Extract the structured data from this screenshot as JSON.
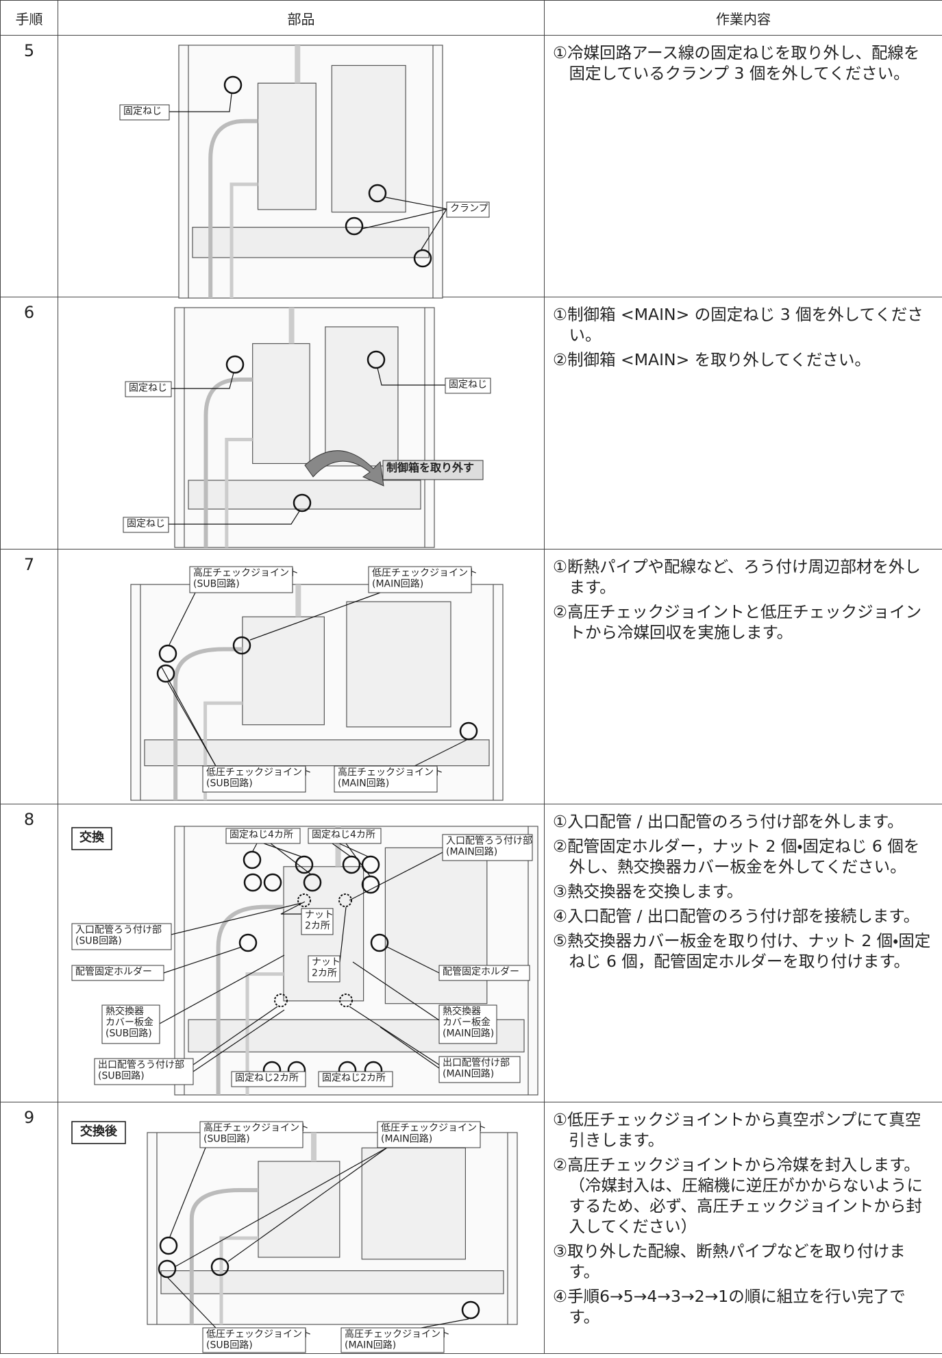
{
  "table": {
    "headers": [
      "手順",
      "部品",
      "作業内容"
    ],
    "rows": [
      {
        "step": "5",
        "callouts": [
          [
            "固定ねじ"
          ],
          [
            "クランプ"
          ]
        ],
        "instructions": [
          "①冷媒回路アース線の固定ねじを取り外し、配線を固定しているクランプ 3 個を外してください。"
        ]
      },
      {
        "step": "6",
        "callouts": [
          [
            "固定ねじ"
          ],
          [
            "固定ねじ"
          ],
          [
            "固定ねじ"
          ],
          [
            "制御箱を取り外す"
          ]
        ],
        "instructions": [
          "①制御箱 <MAIN> の固定ねじ 3 個を外してください。",
          "②制御箱 <MAIN> を取り外してください。"
        ]
      },
      {
        "step": "7",
        "callouts": [
          [
            "高圧チェックジョイント",
            "(SUB回路)"
          ],
          [
            "低圧チェックジョイント",
            "(MAIN回路)"
          ],
          [
            "低圧チェックジョイント",
            "(SUB回路)"
          ],
          [
            "高圧チェックジョイント",
            "(MAIN回路)"
          ]
        ],
        "instructions": [
          "①断熱パイプや配線など、ろう付け周辺部材を外します。",
          "②高圧チェックジョイントと低圧チェックジョイントから冷媒回収を実施します。"
        ]
      },
      {
        "step": "8",
        "tag": "交換",
        "callouts": [
          [
            "固定ねじ4カ所"
          ],
          [
            "固定ねじ4カ所"
          ],
          [
            "入口配管ろう付け部",
            "(MAIN回路)"
          ],
          [
            "ナット",
            "2カ所"
          ],
          [
            "入口配管ろう付け部",
            "(SUB回路)"
          ],
          [
            "ナット",
            "2カ所"
          ],
          [
            "配管固定ホルダー"
          ],
          [
            "配管固定ホルダー"
          ],
          [
            "熱交換器",
            "カバー板金",
            "(SUB回路)"
          ],
          [
            "熱交換器",
            "カバー板金",
            "(MAIN回路)"
          ],
          [
            "出口配管ろう付け部",
            "(SUB回路)"
          ],
          [
            "出口配管付け部",
            "(MAIN回路)"
          ],
          [
            "固定ねじ2カ所"
          ],
          [
            "固定ねじ2カ所"
          ]
        ],
        "instructions": [
          "①入口配管 / 出口配管のろう付け部を外します。",
          "②配管固定ホルダー，ナット 2 個・固定ねじ 6 個を外し、熱交換器カバー板金を外してください。",
          "③熱交換器を交換します。",
          "④入口配管 / 出口配管のろう付け部を接続します。",
          "⑤熱交換器カバー板金を取り付け、ナット 2 個・固定ねじ 6 個，配管固定ホルダーを取り付けます。"
        ]
      },
      {
        "step": "9",
        "tag": "交換後",
        "callouts": [
          [
            "高圧チェックジョイント",
            "(SUB回路)"
          ],
          [
            "低圧チェックジョイント",
            "(MAIN回路)"
          ],
          [
            "低圧チェックジョイント",
            "(SUB回路)"
          ],
          [
            "高圧チェックジョイント",
            "(MAIN回路)"
          ]
        ],
        "instructions": [
          "①低圧チェックジョイントから真空ポンプにて真空引きします。",
          "②高圧チェックジョイントから冷媒を封入します。",
          "（冷媒封入は、圧縮機に逆圧がかからないようにするため、必ず、高圧チェックジョイントから封入してください）",
          "③取り外した配線、断熱パイプなどを取り付けます。",
          "④手順6→5→4→3→2→1の順に組立を行い完了です。"
        ]
      }
    ]
  }
}
